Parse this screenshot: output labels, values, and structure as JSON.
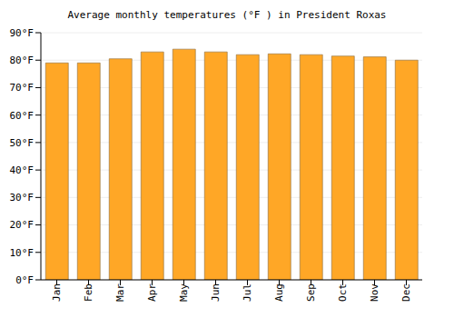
{
  "chart_data": {
    "type": "bar",
    "title": "Average monthly temperatures (°F ) in President Roxas",
    "categories": [
      "Jan",
      "Feb",
      "Mar",
      "Apr",
      "May",
      "Jun",
      "Jul",
      "Aug",
      "Sep",
      "Oct",
      "Nov",
      "Dec"
    ],
    "values": [
      79,
      79,
      80.5,
      83,
      84,
      83,
      82,
      82.3,
      82,
      81.5,
      81.2,
      80
    ],
    "color": "#ffa726",
    "ylim": [
      0,
      90
    ],
    "yticks": [
      {
        "value": 0,
        "label": "0°F"
      },
      {
        "value": 10,
        "label": "10°F"
      },
      {
        "value": 20,
        "label": "20°F"
      },
      {
        "value": 30,
        "label": "30°F"
      },
      {
        "value": 40,
        "label": "40°F"
      },
      {
        "value": 50,
        "label": "50°F"
      },
      {
        "value": 60,
        "label": "60°F"
      },
      {
        "value": 70,
        "label": "70°F"
      },
      {
        "value": 80,
        "label": "80°F"
      },
      {
        "value": 90,
        "label": "90°F"
      }
    ],
    "grid": true
  }
}
